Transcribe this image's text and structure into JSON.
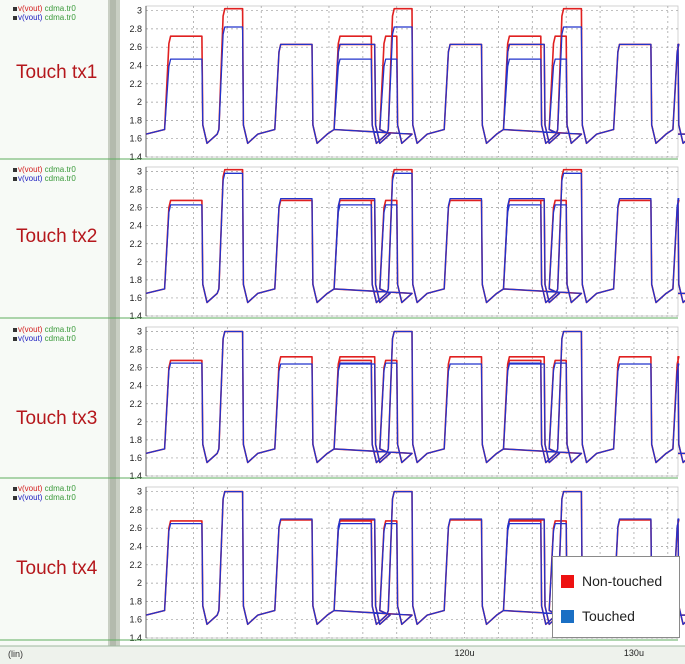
{
  "chart_data": [
    {
      "type": "line",
      "title": "Touch tx1",
      "trace_labels": [
        {
          "name": "v(vout)",
          "file": "cdma.tr0",
          "color": "#d42020"
        },
        {
          "name": "v(vout)",
          "file": "cdma.tr0",
          "color": "#2020c0"
        }
      ],
      "ylim": [
        1.4,
        3.05
      ],
      "yticks": [
        "1.4",
        "1.6",
        "1.8",
        "2",
        "2.2",
        "2.4",
        "2.6",
        "2.8",
        "3"
      ],
      "xlim": [
        101.2,
        132.6
      ],
      "series": [
        {
          "name": "Non-touched",
          "color": "#e02020",
          "levels": {
            "lane_a": 2.63,
            "lane_b": 2.72,
            "lane_c": 3.02
          }
        },
        {
          "name": "Touched",
          "color": "#2233cc",
          "levels": {
            "lane_a": 2.63,
            "lane_b": 2.47,
            "lane_c": 2.82
          }
        }
      ]
    },
    {
      "type": "line",
      "title": "Touch tx2",
      "trace_labels": [
        {
          "name": "v(vout)",
          "file": "cdma.tr0",
          "color": "#d42020"
        },
        {
          "name": "v(vout)",
          "file": "cdma.tr0",
          "color": "#2020c0"
        }
      ],
      "ylim": [
        1.4,
        3.05
      ],
      "yticks": [
        "1.4",
        "1.6",
        "1.8",
        "2",
        "2.2",
        "2.4",
        "2.6",
        "2.8",
        "3"
      ],
      "xlim": [
        101.2,
        132.6
      ],
      "series": [
        {
          "name": "Non-touched",
          "color": "#e02020",
          "levels": {
            "lane_a": 2.68,
            "lane_b": 2.68,
            "lane_c": 3.02
          }
        },
        {
          "name": "Touched",
          "color": "#2233cc",
          "levels": {
            "lane_a": 2.7,
            "lane_b": 2.63,
            "lane_c": 2.98
          }
        }
      ]
    },
    {
      "type": "line",
      "title": "Touch tx3",
      "trace_labels": [
        {
          "name": "v(vout)",
          "file": "cdma.tr0",
          "color": "#d42020"
        },
        {
          "name": "v(vout)",
          "file": "cdma.tr0",
          "color": "#2020c0"
        }
      ],
      "ylim": [
        1.4,
        3.05
      ],
      "yticks": [
        "1.4",
        "1.6",
        "1.8",
        "2",
        "2.2",
        "2.4",
        "2.6",
        "2.8",
        "3"
      ],
      "xlim": [
        101.2,
        132.6
      ],
      "series": [
        {
          "name": "Non-touched",
          "color": "#e02020",
          "levels": {
            "lane_a": 2.72,
            "lane_b": 2.68,
            "lane_c": 3.0
          }
        },
        {
          "name": "Touched",
          "color": "#2233cc",
          "levels": {
            "lane_a": 2.64,
            "lane_b": 2.65,
            "lane_c": 3.0
          }
        }
      ]
    },
    {
      "type": "line",
      "title": "Touch tx4",
      "trace_labels": [
        {
          "name": "v(vout)",
          "file": "cdma.tr0",
          "color": "#d42020"
        },
        {
          "name": "v(vout)",
          "file": "cdma.tr0",
          "color": "#2020c0"
        }
      ],
      "ylim": [
        1.4,
        3.05
      ],
      "yticks": [
        "1.4",
        "1.6",
        "1.8",
        "2",
        "2.2",
        "2.4",
        "2.6",
        "2.8",
        "3"
      ],
      "xlim": [
        101.2,
        132.6
      ],
      "xtick_labels": [
        {
          "value": 120,
          "label": "120u"
        },
        {
          "value": 130,
          "label": "130u"
        }
      ],
      "series": [
        {
          "name": "Non-touched",
          "color": "#e02020",
          "levels": {
            "lane_a": 2.69,
            "lane_b": 2.68,
            "lane_c": 3.0
          }
        },
        {
          "name": "Touched",
          "color": "#2233cc",
          "levels": {
            "lane_a": 2.7,
            "lane_b": 2.65,
            "lane_c": 3.0
          }
        }
      ]
    }
  ],
  "x_axis_label": "(lin)",
  "legend": {
    "position": "bottom-right",
    "items": [
      {
        "label": "Non-touched",
        "color": "#ee1111"
      },
      {
        "label": "Touched",
        "color": "#1a6fc4"
      }
    ]
  }
}
